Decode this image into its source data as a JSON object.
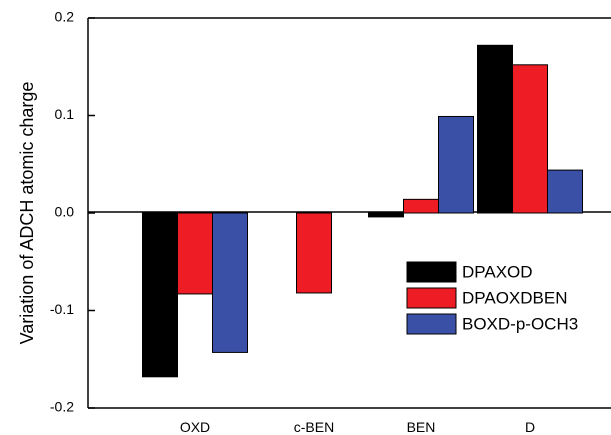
{
  "chart_data": {
    "type": "bar",
    "title": "",
    "xlabel": "",
    "ylabel": "Variation of ADCH atomic charge",
    "categories": [
      "OXD",
      "c-BEN",
      "BEN",
      "D"
    ],
    "series": [
      {
        "name": "DPAXOD",
        "color": "#000000",
        "values": [
          -0.168,
          null,
          -0.004,
          0.172
        ]
      },
      {
        "name": "DPAOXDBEN",
        "color": "#ee1c25",
        "values": [
          -0.083,
          -0.082,
          0.014,
          0.152
        ]
      },
      {
        "name": "BOXD-p-OCH3",
        "color": "#3a4fa6",
        "values": [
          -0.143,
          null,
          0.099,
          0.044
        ]
      }
    ],
    "ylim": [
      -0.2,
      0.2
    ],
    "yticks": [
      "0.2",
      "0.1",
      "0.0",
      "-0.1",
      "-0.2"
    ],
    "ytick_values": [
      0.2,
      0.1,
      0.0,
      -0.1,
      -0.2
    ],
    "grid": false,
    "legend_position": "right"
  }
}
